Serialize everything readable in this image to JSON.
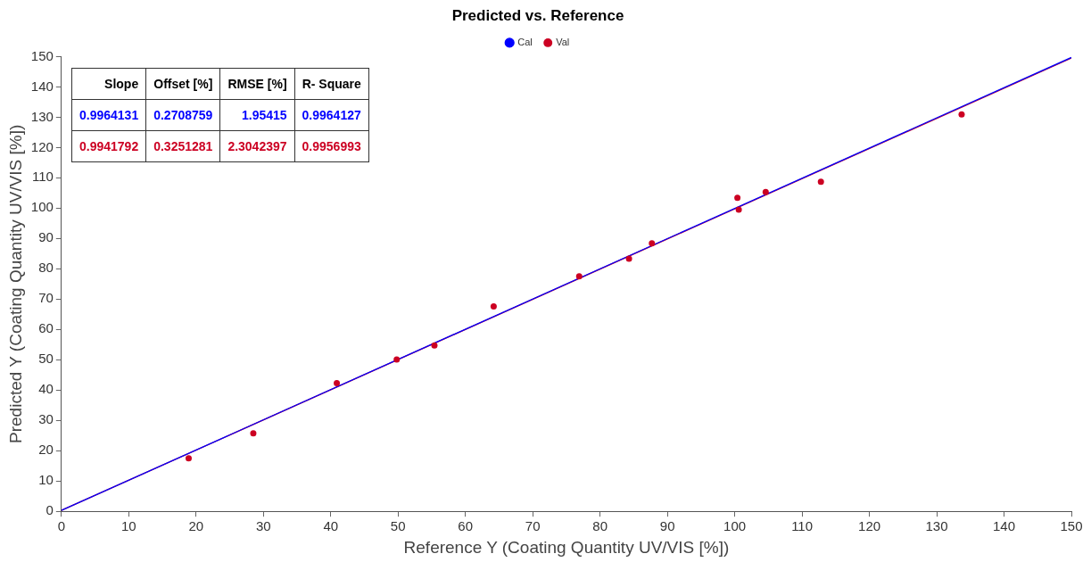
{
  "chart_data": {
    "type": "scatter",
    "title": "Predicted vs. Reference",
    "xlabel": "Reference Y (Coating Quantity UV/VIS [%])",
    "ylabel": "Predicted Y (Coating Quantity UV/VIS [%])",
    "xlim": [
      0,
      150
    ],
    "ylim": [
      0,
      150
    ],
    "xticks": [
      0,
      10,
      20,
      30,
      40,
      50,
      60,
      70,
      80,
      90,
      100,
      110,
      120,
      130,
      140,
      150
    ],
    "yticks": [
      0,
      10,
      20,
      30,
      40,
      50,
      60,
      70,
      80,
      90,
      100,
      110,
      120,
      130,
      140,
      150
    ],
    "grid": false,
    "legend": "top",
    "series": [
      {
        "name": "Cal",
        "color": "#0000ff",
        "type": "line",
        "marker": "none",
        "x": [
          0,
          150
        ],
        "values": [
          0.3,
          149.7
        ]
      },
      {
        "name": "Val",
        "color": "#cc0022",
        "marker": "circle",
        "x": [
          18.9,
          28.5,
          40.9,
          49.8,
          55.4,
          64.2,
          76.9,
          84.3,
          87.7,
          100.4,
          100.6,
          104.6,
          112.8,
          133.7
        ],
        "values": [
          17.5,
          25.7,
          42.3,
          50.1,
          54.7,
          67.6,
          77.5,
          83.3,
          88.4,
          103.4,
          99.5,
          105.3,
          108.7,
          130.9
        ]
      },
      {
        "color": "#cc0022",
        "type": "line",
        "marker": "none",
        "x": [
          0,
          150
        ],
        "values": [
          0.3,
          149.5
        ]
      }
    ],
    "annotations": [
      "Slope",
      "Offset [%]",
      "RMSE [%]",
      "R- Square",
      "0.9964131",
      "0.2708759",
      "1.95415",
      "0.9964127",
      "0.9941792",
      "0.3251281",
      "2.3042397",
      "0.9956993"
    ]
  }
}
